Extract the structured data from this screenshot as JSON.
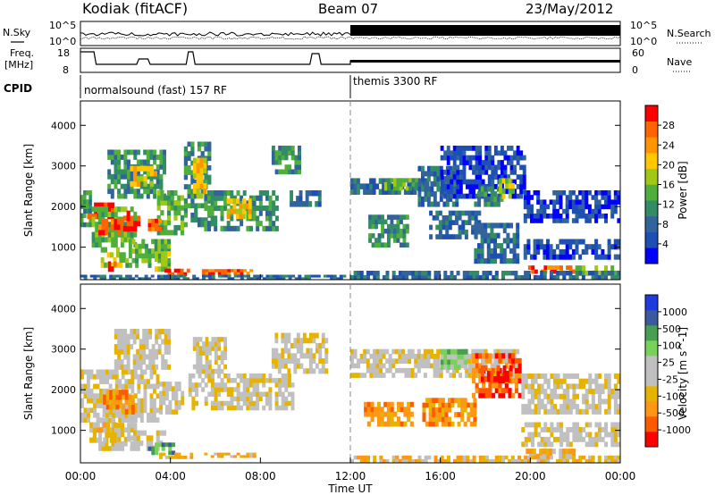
{
  "header": {
    "station": "Kodiak (fitACF)",
    "beam": "Beam 07",
    "date": "23/May/2012"
  },
  "noise_panel": {
    "left_label": "N.Sky",
    "right_label": "N.Search",
    "left_ticks": [
      "10^5",
      "10^0"
    ],
    "right_ticks": [
      "10^5",
      "10^0"
    ]
  },
  "freq_panel": {
    "left_label_1": "Freq.",
    "left_label_2": "[MHz]",
    "right_label": "Nave",
    "left_ticks": [
      "18",
      "8"
    ],
    "right_ticks": [
      "60",
      "0"
    ]
  },
  "cpid": {
    "label": "CPID",
    "modes": [
      {
        "name": "normalsound (fast) 157 RF",
        "start_hour": 0
      },
      {
        "name": "themis 3300 RF",
        "start_hour": 12
      }
    ]
  },
  "axes": {
    "ylabel": "Slant Range [km]",
    "xlabel": "Time UT",
    "x_ticks": [
      "00:00",
      "04:00",
      "08:00",
      "12:00",
      "16:00",
      "20:00",
      "00:00"
    ],
    "y_ticks": [
      "1000",
      "2000",
      "3000",
      "4000"
    ]
  },
  "colors": {
    "power_scale": [
      "#0000ff",
      "#1e50b4",
      "#32649b",
      "#328c64",
      "#50af3c",
      "#a0c814",
      "#ffc800",
      "#ff9600",
      "#ff6400",
      "#ff0000"
    ],
    "velocity_scale": [
      "#ff0000",
      "#ff5a00",
      "#ff9614",
      "#e6b400",
      "#c0c0c0",
      "#c0c0c0",
      "#78d25a",
      "#46a050",
      "#3c5aa0",
      "#1e3cdc"
    ]
  },
  "chart_data": [
    {
      "type": "heatmap",
      "title": "",
      "xlabel": "",
      "ylabel": "Slant Range [km]",
      "xlim": [
        0,
        24
      ],
      "ylim": [
        200,
        4600
      ],
      "colorbar_label": "Power [dB]",
      "colorbar_ticks": [
        "4",
        "8",
        "12",
        "16",
        "20",
        "24",
        "28"
      ],
      "regions": [
        {
          "t0": 0.0,
          "t1": 0.5,
          "r0": 1500,
          "r1": 2400,
          "level": 3
        },
        {
          "t0": 0.3,
          "t1": 1.5,
          "r0": 1700,
          "r1": 2100,
          "level": 9
        },
        {
          "t0": 0.5,
          "t1": 2.5,
          "r0": 1000,
          "r1": 2000,
          "level": 4
        },
        {
          "t0": 0.8,
          "t1": 1.9,
          "r0": 1300,
          "r1": 1700,
          "level": 8
        },
        {
          "t0": 1.9,
          "t1": 2.8,
          "r0": 1400,
          "r1": 1900,
          "level": 9
        },
        {
          "t0": 1.2,
          "t1": 3.8,
          "r0": 2200,
          "r1": 3400,
          "level": 3
        },
        {
          "t0": 2.2,
          "t1": 3.4,
          "r0": 2500,
          "r1": 3000,
          "level": 6
        },
        {
          "t0": 0.9,
          "t1": 2.0,
          "r0": 500,
          "r1": 1000,
          "level": 5
        },
        {
          "t0": 1.1,
          "t1": 1.6,
          "r0": 400,
          "r1": 650,
          "level": 9
        },
        {
          "t0": 2.0,
          "t1": 4.0,
          "r0": 500,
          "r1": 1200,
          "level": 4
        },
        {
          "t0": 3.3,
          "t1": 4.0,
          "r0": 400,
          "r1": 900,
          "level": 5
        },
        {
          "t0": 3.4,
          "t1": 4.6,
          "r0": 1300,
          "r1": 2400,
          "level": 4
        },
        {
          "t0": 3.0,
          "t1": 3.6,
          "r0": 1400,
          "r1": 1700,
          "level": 8
        },
        {
          "t0": 4.6,
          "t1": 5.8,
          "r0": 1500,
          "r1": 3600,
          "level": 3
        },
        {
          "t0": 5.0,
          "t1": 5.6,
          "r0": 2200,
          "r1": 3200,
          "level": 6
        },
        {
          "t0": 5.5,
          "t1": 8.8,
          "r0": 1400,
          "r1": 2400,
          "level": 3
        },
        {
          "t0": 6.5,
          "t1": 7.6,
          "r0": 1700,
          "r1": 2200,
          "level": 6
        },
        {
          "t0": 8.5,
          "t1": 9.8,
          "r0": 2800,
          "r1": 3500,
          "level": 3
        },
        {
          "t0": 9.3,
          "t1": 10.7,
          "r0": 2000,
          "r1": 2400,
          "level": 2
        },
        {
          "t0": 3.6,
          "t1": 5.0,
          "r0": 300,
          "r1": 470,
          "level": 9
        },
        {
          "t0": 5.4,
          "t1": 7.8,
          "r0": 330,
          "r1": 460,
          "level": 8
        },
        {
          "t0": 0.0,
          "t1": 11.8,
          "r0": 200,
          "r1": 320,
          "level": 2
        },
        {
          "t0": 12.0,
          "t1": 15.5,
          "r0": 2300,
          "r1": 2700,
          "level": 2
        },
        {
          "t0": 13.5,
          "t1": 15.0,
          "r0": 2400,
          "r1": 2700,
          "level": 4
        },
        {
          "t0": 15.0,
          "t1": 16.8,
          "r0": 2000,
          "r1": 3000,
          "level": 2
        },
        {
          "t0": 16.0,
          "t1": 19.8,
          "r0": 2200,
          "r1": 3500,
          "level": 1
        },
        {
          "t0": 17.5,
          "t1": 18.8,
          "r0": 2000,
          "r1": 2500,
          "level": 3
        },
        {
          "t0": 18.6,
          "t1": 19.3,
          "r0": 2200,
          "r1": 2700,
          "level": 5
        },
        {
          "t0": 12.8,
          "t1": 14.6,
          "r0": 1000,
          "r1": 1800,
          "level": 3
        },
        {
          "t0": 15.5,
          "t1": 17.8,
          "r0": 1200,
          "r1": 1900,
          "level": 2
        },
        {
          "t0": 17.5,
          "t1": 19.5,
          "r0": 600,
          "r1": 1600,
          "level": 2
        },
        {
          "t0": 19.7,
          "t1": 24.0,
          "r0": 1600,
          "r1": 2400,
          "level": 1
        },
        {
          "t0": 19.7,
          "t1": 24.0,
          "r0": 700,
          "r1": 1200,
          "level": 1
        },
        {
          "t0": 19.9,
          "t1": 22.0,
          "r0": 350,
          "r1": 550,
          "level": 8
        },
        {
          "t0": 22.0,
          "t1": 24.0,
          "r0": 300,
          "r1": 550,
          "level": 5
        },
        {
          "t0": 12.0,
          "t1": 24.0,
          "r0": 200,
          "r1": 420,
          "level": 2
        }
      ]
    },
    {
      "type": "heatmap",
      "title": "",
      "xlabel": "Time UT",
      "ylabel": "Slant Range [km]",
      "xlim": [
        0,
        24
      ],
      "ylim": [
        200,
        4600
      ],
      "colorbar_label": "Velocity [m s^-1]",
      "colorbar_ticks": [
        "1000",
        "500",
        "100",
        "25",
        "-25",
        "-100",
        "-500",
        "-1000"
      ],
      "regions": [
        {
          "t0": 0.0,
          "t1": 3.5,
          "r0": 1200,
          "r1": 2500,
          "level": 4
        },
        {
          "t0": 0.8,
          "t1": 2.5,
          "r0": 500,
          "r1": 1300,
          "level": 4
        },
        {
          "t0": 1.0,
          "t1": 2.4,
          "r0": 1400,
          "r1": 2000,
          "level": 2
        },
        {
          "t0": 0.4,
          "t1": 1.6,
          "r0": 700,
          "r1": 1200,
          "level": 3
        },
        {
          "t0": 2.2,
          "t1": 3.8,
          "r0": 500,
          "r1": 1000,
          "level": 4
        },
        {
          "t0": 3.0,
          "t1": 4.2,
          "r0": 400,
          "r1": 700,
          "level": 7
        },
        {
          "t0": 3.5,
          "t1": 4.6,
          "r0": 1400,
          "r1": 2200,
          "level": 4
        },
        {
          "t0": 1.5,
          "t1": 4.0,
          "r0": 2500,
          "r1": 3500,
          "level": 4
        },
        {
          "t0": 4.8,
          "t1": 9.5,
          "r0": 1500,
          "r1": 2400,
          "level": 4
        },
        {
          "t0": 5.0,
          "t1": 6.5,
          "r0": 2400,
          "r1": 3300,
          "level": 4
        },
        {
          "t0": 3.5,
          "t1": 5.0,
          "r0": 300,
          "r1": 450,
          "level": 3
        },
        {
          "t0": 5.5,
          "t1": 7.8,
          "r0": 330,
          "r1": 450,
          "level": 3
        },
        {
          "t0": 8.5,
          "t1": 11.0,
          "r0": 2400,
          "r1": 3400,
          "level": 4
        },
        {
          "t0": 12.0,
          "t1": 19.5,
          "r0": 2300,
          "r1": 3000,
          "level": 4
        },
        {
          "t0": 12.6,
          "t1": 14.8,
          "r0": 1100,
          "r1": 1700,
          "level": 2
        },
        {
          "t0": 15.2,
          "t1": 17.6,
          "r0": 1100,
          "r1": 1800,
          "level": 2
        },
        {
          "t0": 17.4,
          "t1": 19.6,
          "r0": 1800,
          "r1": 2900,
          "level": 1
        },
        {
          "t0": 17.8,
          "t1": 19.2,
          "r0": 2200,
          "r1": 2600,
          "level": 0
        },
        {
          "t0": 16.0,
          "t1": 17.2,
          "r0": 2500,
          "r1": 3000,
          "level": 6
        },
        {
          "t0": 19.6,
          "t1": 24.0,
          "r0": 1400,
          "r1": 2400,
          "level": 4
        },
        {
          "t0": 19.6,
          "t1": 24.0,
          "r0": 600,
          "r1": 1200,
          "level": 4
        },
        {
          "t0": 19.8,
          "t1": 22.0,
          "r0": 300,
          "r1": 550,
          "level": 3
        },
        {
          "t0": 12.0,
          "t1": 24.0,
          "r0": 200,
          "r1": 380,
          "level": 3
        }
      ]
    }
  ]
}
